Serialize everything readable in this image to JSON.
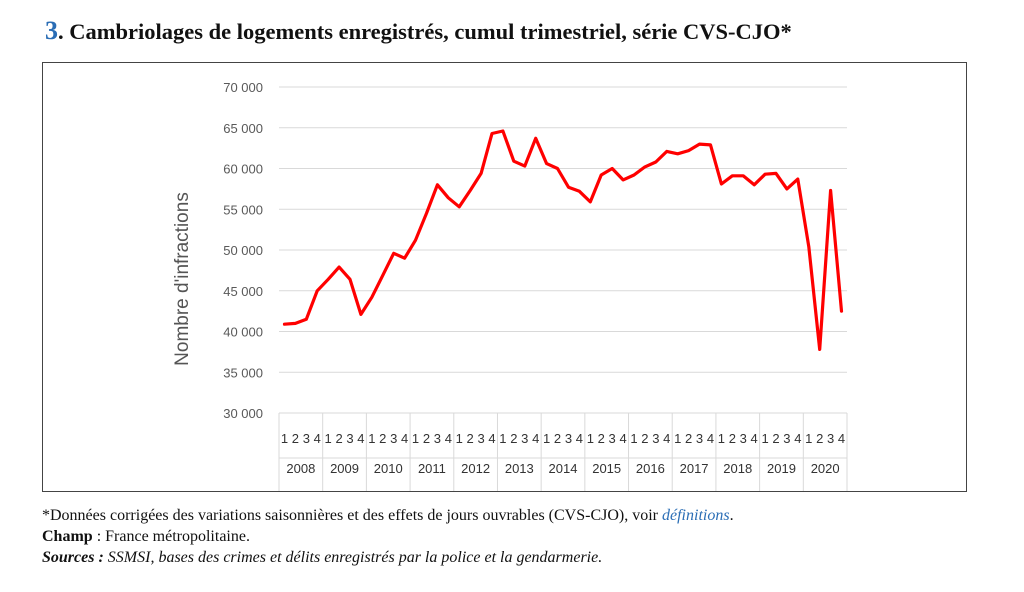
{
  "header": {
    "number": "3",
    "title": ". Cambriolages de logements enregistrés, cumul trimestriel, série CVS-CJO*"
  },
  "notes": {
    "note_text": "*Données corrigées des variations saisonnières et des effets de jours ouvrables (CVS-CJO), voir ",
    "note_link": "définitions",
    "note_end": ".",
    "champ_label": "Champ",
    "champ_text": " : France métropolitaine.",
    "sources_label": "Sources :",
    "sources_text": " SSMSI, bases des crimes et délits enregistrés par la police et la gendarmerie."
  },
  "colors": {
    "line": "#ff0000",
    "grid": "#d9d9d9",
    "accent": "#2a6db5"
  },
  "chart_data": {
    "type": "line",
    "title": "",
    "xlabel": "",
    "ylabel": "Nombre d'infractions",
    "ylim": [
      30000,
      70000
    ],
    "yticks": [
      30000,
      35000,
      40000,
      45000,
      50000,
      55000,
      60000,
      65000,
      70000
    ],
    "ytick_labels": [
      "30 000",
      "35 000",
      "40 000",
      "45 000",
      "50 000",
      "55 000",
      "60 000",
      "65 000",
      "70 000"
    ],
    "grid": true,
    "quarter_labels": [
      "1",
      "2",
      "3",
      "4"
    ],
    "years": [
      "2008",
      "2009",
      "2010",
      "2011",
      "2012",
      "2013",
      "2014",
      "2015",
      "2016",
      "2017",
      "2018",
      "2019",
      "2020"
    ],
    "last_year_quarters": 4,
    "series": [
      {
        "values": [
          40900,
          41000,
          41500,
          45000,
          46400,
          47900,
          46400,
          42100,
          44200,
          46900,
          49600,
          49000,
          51200,
          54500,
          58000,
          56400,
          55300,
          57300,
          59400,
          64300,
          64600,
          60900,
          60300,
          63700,
          60600,
          60000,
          57700,
          57200,
          55900,
          59200,
          60000,
          58600,
          59200,
          60200,
          60800,
          62100,
          61800,
          62200,
          63000,
          62900,
          58100,
          59100,
          59100,
          58000,
          59300,
          59400,
          57500,
          58700,
          50400,
          37800,
          57300,
          42500
        ]
      }
    ]
  }
}
